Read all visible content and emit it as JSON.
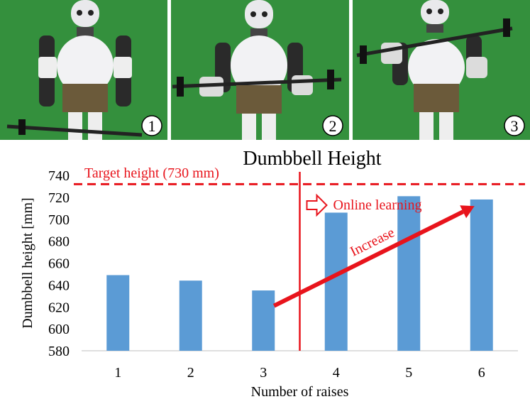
{
  "photos": [
    {
      "badge": "1"
    },
    {
      "badge": "2"
    },
    {
      "badge": "3"
    }
  ],
  "colors": {
    "bar": "#5b9bd5",
    "annotation": "#e8141c",
    "background_green": "#2f8a38",
    "axis": "#bfbfbf"
  },
  "chart_data": {
    "type": "bar",
    "title": "Dumbbell Height",
    "xlabel": "Number of raises",
    "ylabel": "Dumbbell height [mm]",
    "categories": [
      "1",
      "2",
      "3",
      "4",
      "5",
      "6"
    ],
    "values": [
      649,
      644,
      635,
      706,
      721,
      718
    ],
    "ylim": [
      580,
      740
    ],
    "yticks": [
      580,
      600,
      620,
      640,
      660,
      680,
      700,
      720,
      740
    ],
    "grid": false,
    "target_line": {
      "value": 732,
      "label": "Target height (730 mm)"
    },
    "divider_after_category": "3",
    "annotations": {
      "online_learning": "Online learning",
      "increase": "Increase"
    },
    "increase_arrow": {
      "from": {
        "x": "3",
        "y": 621
      },
      "to": {
        "x": "6",
        "y": 712
      }
    }
  }
}
